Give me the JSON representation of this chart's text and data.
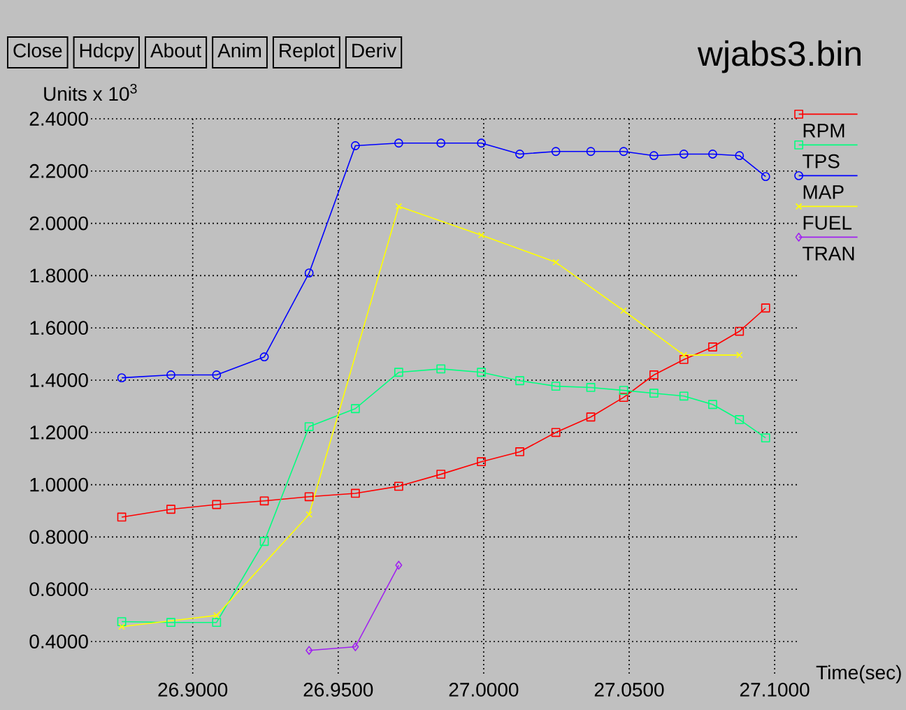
{
  "chart_data": {
    "type": "line",
    "title": "wjabs3.bin",
    "xlabel": "Time(sec)",
    "ylabel": "Units x 10$^{3}$",
    "annotations": [
      "Close",
      "Hdcpy",
      "About",
      "Anim",
      "Replot",
      "Deriv"
    ],
    "x": [
      26.8756,
      26.8925,
      26.9082,
      26.9246,
      26.94,
      26.9559,
      26.9708,
      26.9853,
      26.9992,
      27.0124,
      27.0248,
      27.0368,
      27.0481,
      27.0585,
      27.0688,
      27.0787,
      27.0879,
      27.0969
    ],
    "series": [
      {
        "name": "RPM",
        "color": "#ff0000",
        "marker": "square",
        "values": [
          0.876,
          0.906,
          0.924,
          0.938,
          0.954,
          0.967,
          0.994,
          1.04,
          1.088,
          1.126,
          1.2,
          1.259,
          1.334,
          1.42,
          1.479,
          1.527,
          1.587,
          1.676
        ]
      },
      {
        "name": "TPS",
        "color": "#00ff7f",
        "marker": "square",
        "values": [
          0.476,
          0.473,
          0.473,
          0.783,
          1.222,
          1.291,
          1.43,
          1.443,
          1.43,
          1.398,
          1.377,
          1.372,
          1.361,
          1.35,
          1.339,
          1.307,
          1.249,
          1.179
        ]
      },
      {
        "name": "MAP",
        "color": "#0000ff",
        "marker": "circle",
        "values": [
          1.409,
          1.42,
          1.42,
          1.489,
          1.81,
          2.297,
          2.307,
          2.307,
          2.307,
          2.265,
          2.275,
          2.275,
          2.275,
          2.259,
          2.265,
          2.265,
          2.259,
          2.179
        ]
      },
      {
        "name": "FUEL",
        "color": "#ffff00",
        "marker": "cross",
        "x": [
          26.8756,
          26.9082,
          26.94,
          26.9708,
          26.9992,
          27.0248,
          27.0481,
          27.0688,
          27.0879
        ],
        "values": [
          0.457,
          0.5,
          0.886,
          2.065,
          1.955,
          1.851,
          1.666,
          1.496,
          1.496
        ]
      },
      {
        "name": "TRAN",
        "color": "#a020f0",
        "marker": "diamond",
        "x": [
          26.94,
          26.9559,
          26.9708
        ],
        "values": [
          0.366,
          0.38,
          0.692
        ]
      }
    ],
    "xlim": [
      26.865,
      27.108
    ],
    "ylim": [
      0.277,
      2.4
    ],
    "xticks": [
      {
        "value": 26.9,
        "label": "26.9000"
      },
      {
        "value": 26.95,
        "label": "26.9500"
      },
      {
        "value": 27.0,
        "label": "27.0000"
      },
      {
        "value": 27.05,
        "label": "27.0500"
      },
      {
        "value": 27.1,
        "label": "27.1000"
      }
    ],
    "yticks": [
      {
        "value": 0.4,
        "label": "0.4000"
      },
      {
        "value": 0.6,
        "label": "0.6000"
      },
      {
        "value": 0.8,
        "label": "0.8000"
      },
      {
        "value": 1.0,
        "label": "1.0000"
      },
      {
        "value": 1.2,
        "label": "1.2000"
      },
      {
        "value": 1.4,
        "label": "1.4000"
      },
      {
        "value": 1.6,
        "label": "1.6000"
      },
      {
        "value": 1.8,
        "label": "1.8000"
      },
      {
        "value": 2.0,
        "label": "2.0000"
      },
      {
        "value": 2.2,
        "label": "2.2000"
      },
      {
        "value": 2.4,
        "label": "2.4000"
      }
    ],
    "grid": true,
    "legend": "top right",
    "line_style": "solid"
  }
}
